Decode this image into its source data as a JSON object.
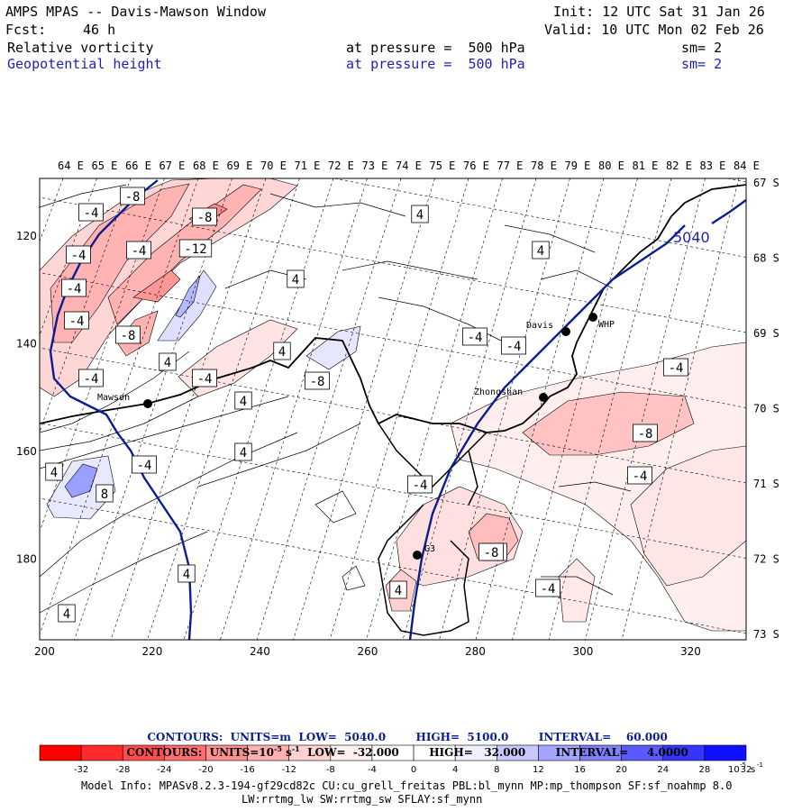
{
  "header": {
    "title": "AMPS MPAS -- Davis-Mawson Window",
    "init": "Init: 12 UTC Sat 31 Jan 26",
    "fcst_label": "Fcst:",
    "fcst_value": "46 h",
    "valid": "Valid: 10 UTC Mon 02 Feb 26",
    "field1": {
      "name": "Relative vorticity",
      "pressure": "at pressure =  500 hPa",
      "sm": "sm= 2",
      "color": "#000000"
    },
    "field2": {
      "name": "Geopotential height",
      "pressure": "at pressure =  500 hPa",
      "sm": "sm= 2",
      "color": "#1f1fb4"
    }
  },
  "map": {
    "top_lon_labels": [
      "64 E",
      "65 E",
      "66 E",
      "67 E",
      "68 E",
      "69 E",
      "70 E",
      "71 E",
      "72 E",
      "73 E",
      "74 E",
      "75 E",
      "76 E",
      "77 E",
      "78 E",
      "79 E",
      "80 E",
      "81 E",
      "82 E",
      "83 E",
      "84 E"
    ],
    "right_lat_labels": [
      "67 S",
      "68 S",
      "69 S",
      "70 S",
      "71 S",
      "72 S",
      "73 S"
    ],
    "left_y_labels": [
      "120",
      "140",
      "160",
      "180"
    ],
    "bottom_x_labels": [
      "200",
      "220",
      "240",
      "260",
      "280",
      "300",
      "320"
    ],
    "stations": [
      {
        "name": "Mawson"
      },
      {
        "name": "Davis"
      },
      {
        "name": "WHP"
      },
      {
        "name": "Zhongshan"
      },
      {
        "name": "G3"
      }
    ],
    "height_contour_label": "5040",
    "vorticity_labels": [
      "-8",
      "-4",
      "-8",
      "-4",
      "-12",
      "-4",
      "-4",
      "-4",
      "4",
      "-8",
      "4",
      "-4",
      "4",
      "-4",
      "-8",
      "4",
      "4",
      "4",
      "-8",
      "-4",
      "-4",
      "4",
      "-8",
      "-4",
      "-4",
      "4",
      "8",
      "-4",
      "-4",
      "-8",
      "-4",
      "4",
      "4",
      "4"
    ]
  },
  "legend": {
    "height_units": "CONTOURS:  UNITS=m",
    "height_low": "LOW=  5040.0",
    "height_high": "HIGH=  5100.0",
    "height_interval": "INTERVAL=    60.000",
    "vort_units": "CONTOURS:  UNITS=10",
    "vort_exp": "-5",
    "vort_s": " s",
    "vort_sexp": "-1",
    "vort_low": "LOW=  -32.000",
    "vort_high": "HIGH=   32.000",
    "vort_interval": "INTERVAL=     4.0000"
  },
  "colorbar": {
    "colors": [
      "#ff0000",
      "#ff2a2a",
      "#ff4d4d",
      "#ff6f6f",
      "#ff9090",
      "#ffb1b1",
      "#ffd1d1",
      "#fff0f0",
      "#ffffff",
      "#ffffff",
      "#f0f0ff",
      "#c8c8ff",
      "#a5a5ff",
      "#8080ff",
      "#5a5aff",
      "#3535ff",
      "#1010ff"
    ],
    "tick_labels": [
      "-32",
      "-28",
      "-24",
      "-20",
      "-16",
      "-12",
      "-8",
      "-4",
      "0",
      "4",
      "8",
      "12",
      "16",
      "20",
      "24",
      "28",
      "32"
    ],
    "unit_base": "10",
    "unit_exp": "-5",
    "unit_s": "s",
    "unit_sexp": "-1"
  },
  "model_info": {
    "line1": "Model Info: MPASv8.2.3-194-gf29cd82c CU:cu_grell_freitas PBL:bl_mynn MP:mp_thompson SF:sf_noahmp 8.0",
    "line2": "LW:rrtmg_lw SW:rrtmg_sw SFLAY:sf_mynn"
  }
}
